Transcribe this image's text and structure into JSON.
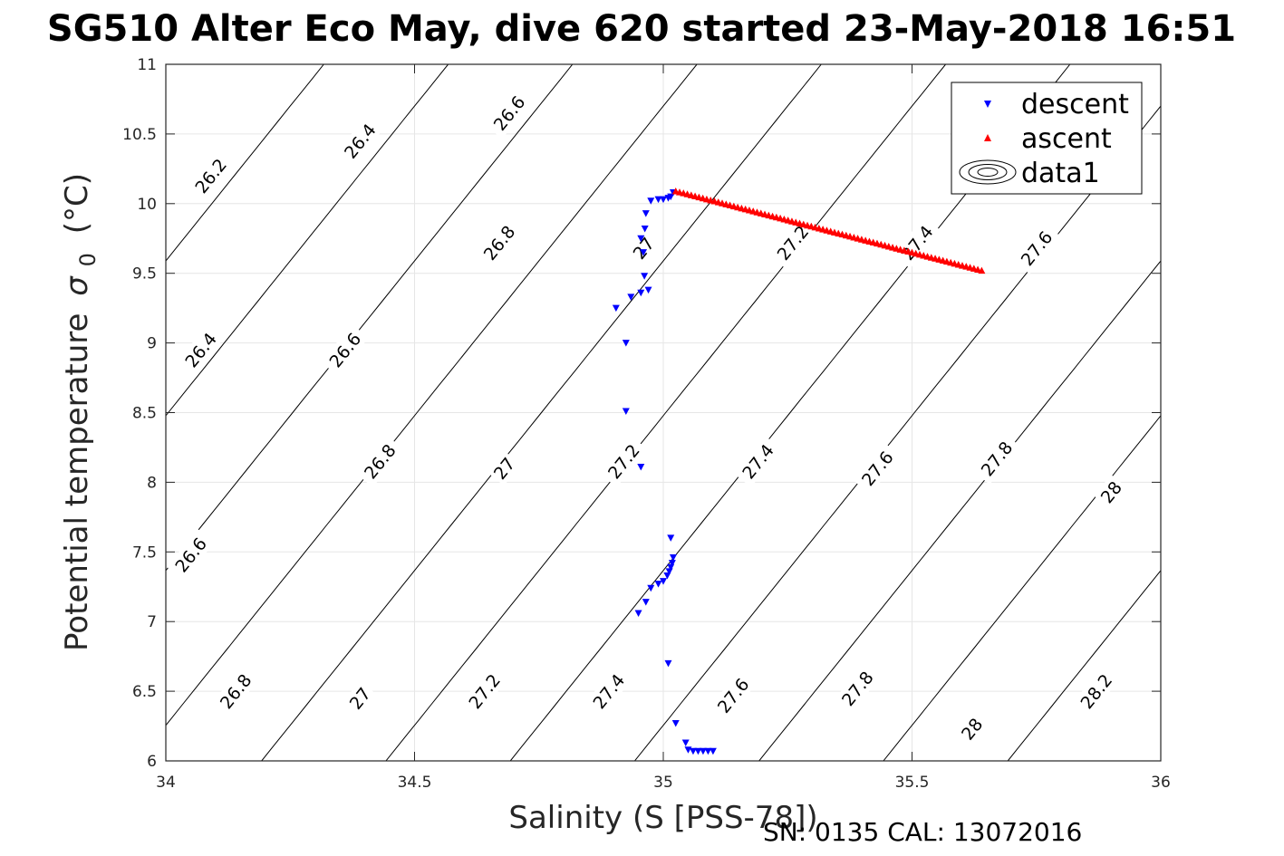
{
  "chart_data": {
    "type": "scatter",
    "title": "SG510 Alter Eco May, dive 620 started 23-May-2018 16:51",
    "xlabel": "Salinity (S [PSS-78])",
    "ylabel": "Potential temperature",
    "ylabel_symbol": "σ",
    "ylabel_subscript": "0",
    "ylabel_unit": "(°C)",
    "xlim": [
      34,
      36
    ],
    "ylim": [
      6,
      11
    ],
    "x_ticks": [
      "34",
      "34.5",
      "35",
      "35.5",
      "36"
    ],
    "y_ticks": [
      "6",
      "6.5",
      "7",
      "7.5",
      "8",
      "8.5",
      "9",
      "9.5",
      "10",
      "10.5",
      "11"
    ],
    "grid": true,
    "legend_position": "top-right",
    "legend": [
      "descent",
      "ascent",
      "data1"
    ],
    "series": [
      {
        "name": "descent",
        "marker": "triangle-down",
        "color": "#0000ff",
        "points": [
          [
            35.02,
            10.08
          ],
          [
            35.015,
            10.05
          ],
          [
            35.01,
            10.04
          ],
          [
            35.0,
            10.03
          ],
          [
            34.99,
            10.03
          ],
          [
            34.975,
            10.02
          ],
          [
            34.965,
            9.93
          ],
          [
            34.963,
            9.82
          ],
          [
            34.955,
            9.75
          ],
          [
            34.96,
            9.65
          ],
          [
            34.962,
            9.48
          ],
          [
            34.97,
            9.38
          ],
          [
            34.955,
            9.36
          ],
          [
            34.935,
            9.33
          ],
          [
            34.905,
            9.25
          ],
          [
            34.925,
            9.0
          ],
          [
            34.925,
            8.51
          ],
          [
            34.955,
            8.11
          ],
          [
            35.015,
            7.6
          ],
          [
            35.02,
            7.46
          ],
          [
            35.018,
            7.42
          ],
          [
            35.015,
            7.39
          ],
          [
            35.012,
            7.36
          ],
          [
            35.008,
            7.33
          ],
          [
            35.0,
            7.29
          ],
          [
            34.99,
            7.27
          ],
          [
            34.975,
            7.24
          ],
          [
            34.965,
            7.14
          ],
          [
            34.95,
            7.06
          ],
          [
            35.01,
            6.7
          ],
          [
            35.025,
            6.27
          ],
          [
            35.045,
            6.13
          ],
          [
            35.05,
            6.08
          ],
          [
            35.06,
            6.07
          ],
          [
            35.07,
            6.07
          ],
          [
            35.08,
            6.07
          ],
          [
            35.09,
            6.07
          ],
          [
            35.1,
            6.07
          ]
        ]
      },
      {
        "name": "ascent",
        "marker": "triangle-up",
        "color": "#ff0000",
        "points": [
          [
            35.025,
            10.09
          ],
          [
            35.64,
            9.52
          ]
        ],
        "count": 80
      }
    ],
    "contour": {
      "name": "data1",
      "color": "#000000",
      "levels": [
        26.2,
        26.4,
        26.6,
        26.8,
        27.0,
        27.2,
        27.4,
        27.6,
        27.8,
        28.0,
        28.2
      ],
      "labels": [
        {
          "text": "26.2",
          "s": 34.09,
          "t": 10.2
        },
        {
          "text": "26.4",
          "s": 34.39,
          "t": 10.45
        },
        {
          "text": "26.6",
          "s": 34.69,
          "t": 10.65
        },
        {
          "text": "26.4",
          "s": 34.07,
          "t": 8.95
        },
        {
          "text": "26.6",
          "s": 34.36,
          "t": 8.95
        },
        {
          "text": "26.8",
          "s": 34.67,
          "t": 9.72
        },
        {
          "text": "27",
          "s": 34.96,
          "t": 9.68
        },
        {
          "text": "27.2",
          "s": 35.26,
          "t": 9.72
        },
        {
          "text": "27.4",
          "s": 35.51,
          "t": 9.72
        },
        {
          "text": "27.6",
          "s": 35.75,
          "t": 9.68
        },
        {
          "text": "26.8",
          "s": 34.43,
          "t": 8.15
        },
        {
          "text": "27",
          "s": 34.68,
          "t": 8.1
        },
        {
          "text": "27.2",
          "s": 34.92,
          "t": 8.15
        },
        {
          "text": "27.4",
          "s": 35.19,
          "t": 8.15
        },
        {
          "text": "27.6",
          "s": 35.43,
          "t": 8.1
        },
        {
          "text": "27.8",
          "s": 35.67,
          "t": 8.17
        },
        {
          "text": "28",
          "s": 35.9,
          "t": 7.93
        },
        {
          "text": "26.6",
          "s": 34.05,
          "t": 7.48
        },
        {
          "text": "26.8",
          "s": 34.14,
          "t": 6.5
        },
        {
          "text": "27",
          "s": 34.39,
          "t": 6.45
        },
        {
          "text": "27.2",
          "s": 34.64,
          "t": 6.5
        },
        {
          "text": "27.4",
          "s": 34.89,
          "t": 6.5
        },
        {
          "text": "27.6",
          "s": 35.14,
          "t": 6.47
        },
        {
          "text": "27.8",
          "s": 35.39,
          "t": 6.52
        },
        {
          "text": "28",
          "s": 35.62,
          "t": 6.23
        },
        {
          "text": "28.2",
          "s": 35.87,
          "t": 6.5
        }
      ]
    },
    "footer": "SN: 0135  CAL: 13072016"
  }
}
